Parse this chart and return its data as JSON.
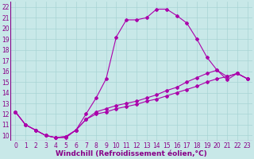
{
  "xlabel": "Windchill (Refroidissement éolien,°C)",
  "background_color": "#c8e8e8",
  "line_color": "#aa00aa",
  "xlim": [
    -0.5,
    23.5
  ],
  "ylim": [
    9.5,
    22.5
  ],
  "xticks": [
    0,
    1,
    2,
    3,
    4,
    5,
    6,
    7,
    8,
    9,
    10,
    11,
    12,
    13,
    14,
    15,
    16,
    17,
    18,
    19,
    20,
    21,
    22,
    23
  ],
  "yticks": [
    10,
    11,
    12,
    13,
    14,
    15,
    16,
    17,
    18,
    19,
    20,
    21,
    22
  ],
  "curve1_x": [
    0,
    1,
    2,
    3,
    4,
    5,
    6,
    7,
    8,
    9,
    10,
    11,
    12,
    13,
    14,
    15,
    16,
    17,
    18,
    19,
    20,
    21,
    22,
    23
  ],
  "curve1_y": [
    12.2,
    11.0,
    10.5,
    10.0,
    9.8,
    9.8,
    10.5,
    12.0,
    13.5,
    15.3,
    19.2,
    20.8,
    20.8,
    21.0,
    21.8,
    21.8,
    21.2,
    20.5,
    19.0,
    17.3,
    16.1,
    15.2,
    15.8,
    15.3
  ],
  "curve2_x": [
    0,
    1,
    2,
    3,
    4,
    5,
    6,
    7,
    8,
    9,
    10,
    11,
    12,
    13,
    14,
    15,
    16,
    17,
    18,
    19,
    20,
    21,
    22,
    23
  ],
  "curve2_y": [
    12.2,
    11.0,
    10.5,
    10.0,
    9.8,
    9.9,
    10.5,
    11.5,
    12.2,
    12.5,
    12.8,
    13.0,
    13.2,
    13.5,
    13.8,
    14.2,
    14.5,
    15.0,
    15.4,
    15.8,
    16.1,
    15.5,
    15.8,
    15.3
  ],
  "curve3_x": [
    0,
    1,
    2,
    3,
    4,
    5,
    6,
    7,
    8,
    9,
    10,
    11,
    12,
    13,
    14,
    15,
    16,
    17,
    18,
    19,
    20,
    21,
    22,
    23
  ],
  "curve3_y": [
    12.2,
    11.0,
    10.5,
    10.0,
    9.8,
    9.9,
    10.5,
    11.5,
    12.0,
    12.2,
    12.5,
    12.7,
    12.9,
    13.2,
    13.4,
    13.7,
    14.0,
    14.3,
    14.6,
    15.0,
    15.3,
    15.5,
    15.8,
    15.3
  ],
  "grid_color": "#a8d4d4",
  "marker": "D",
  "markersize": 2.0,
  "linewidth": 0.8,
  "xlabel_fontsize": 6.5,
  "tick_fontsize": 5.5,
  "label_color": "#880088"
}
